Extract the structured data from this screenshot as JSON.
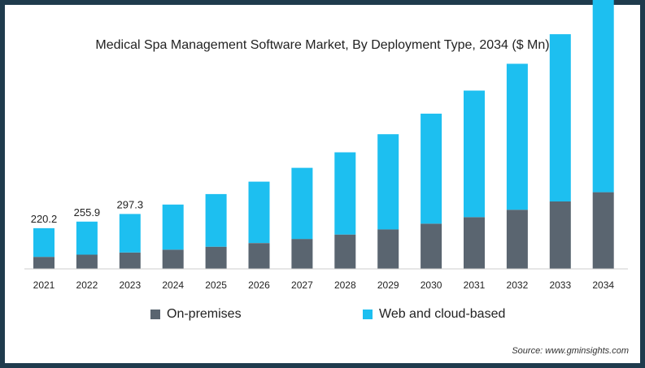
{
  "chart_data": {
    "type": "bar",
    "stacked": true,
    "title": "Medical Spa Management Software Market, By Deployment Type, 2034 ($ Mn)",
    "categories": [
      "2021",
      "2022",
      "2023",
      "2024",
      "2025",
      "2026",
      "2027",
      "2028",
      "2029",
      "2030",
      "2031",
      "2032",
      "2033",
      "2034"
    ],
    "series": [
      {
        "name": "On-premises",
        "color": "#5a6570",
        "values": [
          65,
          77,
          89,
          104,
          120,
          140,
          162,
          186,
          214,
          245,
          280,
          320,
          365,
          415
        ]
      },
      {
        "name": "Web and cloud-based",
        "color": "#1dbff0",
        "values": [
          155.2,
          178.9,
          208.3,
          244,
          285,
          332,
          385,
          445,
          515,
          595,
          685,
          790,
          905,
          1040
        ]
      }
    ],
    "data_labels": [
      "220.2",
      "255.9",
      "297.3",
      "",
      "",
      "",
      "",
      "",
      "",
      "",
      "",
      "",
      "",
      ""
    ],
    "ylim": [
      0,
      1455
    ],
    "grid": false,
    "legend_position": "bottom"
  },
  "source": "Source: www.gminsights.com"
}
